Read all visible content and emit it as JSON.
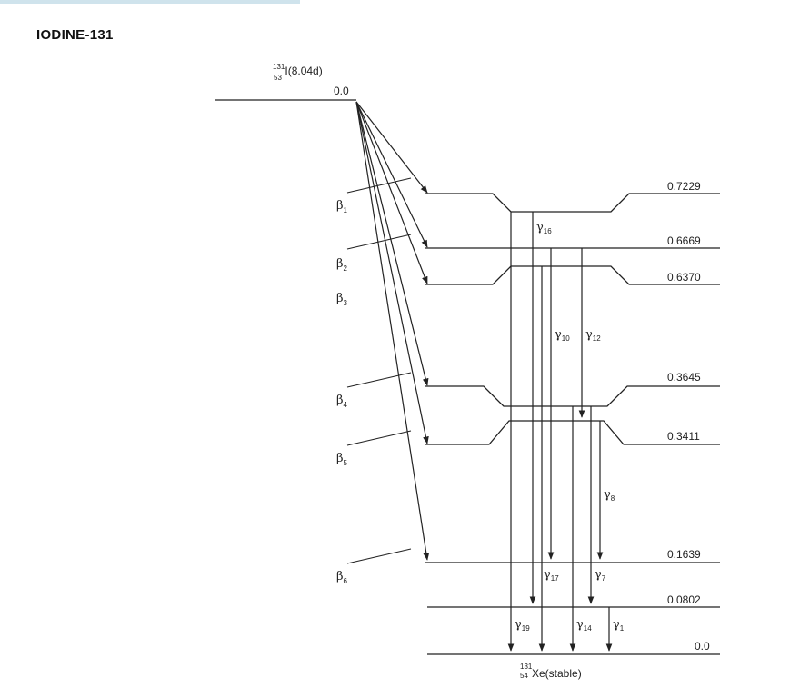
{
  "title": "IODINE-131",
  "parent": {
    "mass": "131",
    "atomic_number": "53",
    "label": "I(8.04d)",
    "energy": "0.0"
  },
  "daughter": {
    "mass": "131",
    "atomic_number": "54",
    "label": "Xe(stable)"
  },
  "levels": [
    "0.7229",
    "0.6669",
    "0.6370",
    "0.3645",
    "0.3411",
    "0.1639",
    "0.0802",
    "0.0"
  ],
  "beta_labels": [
    {
      "symbol": "β",
      "sub": "1"
    },
    {
      "symbol": "β",
      "sub": "2"
    },
    {
      "symbol": "β",
      "sub": "3"
    },
    {
      "symbol": "β",
      "sub": "4"
    },
    {
      "symbol": "β",
      "sub": "5"
    },
    {
      "symbol": "β",
      "sub": "6"
    }
  ],
  "gamma_labels": [
    {
      "symbol": "γ",
      "sub": "16"
    },
    {
      "symbol": "γ",
      "sub": "10"
    },
    {
      "symbol": "γ",
      "sub": "12"
    },
    {
      "symbol": "γ",
      "sub": "8"
    },
    {
      "symbol": "γ",
      "sub": "17"
    },
    {
      "symbol": "γ",
      "sub": "7"
    },
    {
      "symbol": "γ",
      "sub": "19"
    },
    {
      "symbol": "γ",
      "sub": "14"
    },
    {
      "symbol": "γ",
      "sub": "1"
    }
  ]
}
